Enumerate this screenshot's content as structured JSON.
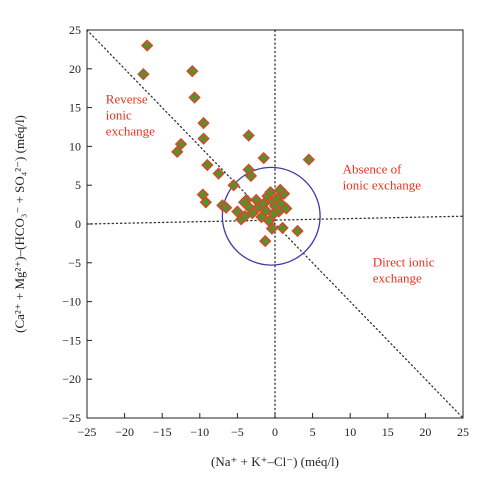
{
  "colors": {
    "axis": "#222222",
    "guide_line": "#333333",
    "circle": "#3a3aa8",
    "marker_fill": "#5a8f2a",
    "marker_stroke": "#d9482c",
    "region_text": "#e8321e"
  },
  "chart_data": {
    "type": "scatter",
    "xlabel": "(Na⁺ + K⁺–Cl⁻) (méq/l)",
    "ylabel": "(Ca²⁺ + Mg²⁺)–(HCO₃⁻ + SO₄²⁻) (méq/l)",
    "xlim": [
      -25,
      25
    ],
    "ylim": [
      -25,
      25
    ],
    "x_ticks": [
      -25,
      -20,
      -15,
      -10,
      -5,
      0,
      5,
      10,
      15,
      20,
      25
    ],
    "y_ticks": [
      -25,
      -20,
      -15,
      -10,
      -5,
      0,
      5,
      10,
      15,
      20,
      25
    ],
    "x_tick_labels": [
      "−25",
      "−20",
      "−15",
      "−10",
      "−5",
      "0",
      "5",
      "10",
      "15",
      "20",
      "25"
    ],
    "y_tick_labels": [
      "−25",
      "−20",
      "−15",
      "−10",
      "−5",
      "0",
      "5",
      "10",
      "15",
      "20",
      "25"
    ],
    "grid": false,
    "marker": "diamond",
    "reference_lines": [
      {
        "style": "dotted",
        "from": [
          -25,
          25
        ],
        "to": [
          25,
          -25
        ]
      },
      {
        "style": "dotted",
        "from": [
          -25,
          0
        ],
        "to": [
          25,
          1
        ]
      },
      {
        "style": "dotted",
        "from": [
          0,
          -25
        ],
        "to": [
          0,
          25
        ]
      }
    ],
    "circle": {
      "center": [
        -0.5,
        1
      ],
      "radius": 6.5
    },
    "region_labels": [
      {
        "lines": [
          "Reverse",
          "ionic",
          "exchange"
        ],
        "at": [
          -22.5,
          15.5
        ]
      },
      {
        "lines": [
          "Absence of",
          "ionic exchange"
        ],
        "at": [
          9,
          6.5
        ]
      },
      {
        "lines": [
          "Direct ionic",
          "exchange"
        ],
        "at": [
          13,
          -5.5
        ]
      }
    ],
    "points": [
      {
        "x": -17,
        "y": 23
      },
      {
        "x": -17.5,
        "y": 19.3
      },
      {
        "x": -11,
        "y": 19.7
      },
      {
        "x": -10.7,
        "y": 16.3
      },
      {
        "x": -9.5,
        "y": 13
      },
      {
        "x": -12.5,
        "y": 10.3
      },
      {
        "x": -13,
        "y": 9.3
      },
      {
        "x": -9.5,
        "y": 11
      },
      {
        "x": -3.5,
        "y": 11.4
      },
      {
        "x": -1.5,
        "y": 8.5
      },
      {
        "x": 4.5,
        "y": 8.3
      },
      {
        "x": -9,
        "y": 7.6
      },
      {
        "x": -7.5,
        "y": 6.5
      },
      {
        "x": -3.5,
        "y": 7
      },
      {
        "x": -3.2,
        "y": 6.2
      },
      {
        "x": -5.5,
        "y": 5
      },
      {
        "x": -9.6,
        "y": 3.8
      },
      {
        "x": -9.2,
        "y": 2.8
      },
      {
        "x": -7,
        "y": 2.4
      },
      {
        "x": -6.5,
        "y": 2.1
      },
      {
        "x": -5,
        "y": 1.6
      },
      {
        "x": -4.5,
        "y": 0.6
      },
      {
        "x": -4,
        "y": 1
      },
      {
        "x": -3.5,
        "y": 2.2
      },
      {
        "x": -3,
        "y": 1.4
      },
      {
        "x": -2.5,
        "y": 3.1
      },
      {
        "x": -2.2,
        "y": 2.2
      },
      {
        "x": -1.8,
        "y": 0.9
      },
      {
        "x": -1.5,
        "y": 2.6
      },
      {
        "x": -1,
        "y": 3.6
      },
      {
        "x": -0.6,
        "y": 4.1
      },
      {
        "x": -0.3,
        "y": 2.9
      },
      {
        "x": 0,
        "y": 2.3
      },
      {
        "x": 0.3,
        "y": 3.3
      },
      {
        "x": 0.5,
        "y": 1.6
      },
      {
        "x": 0.8,
        "y": 2.6
      },
      {
        "x": 1.2,
        "y": 3.9
      },
      {
        "x": 1.5,
        "y": 2
      },
      {
        "x": -0.2,
        "y": 1.3
      },
      {
        "x": -1.2,
        "y": 1.7
      },
      {
        "x": -3.8,
        "y": 3.1
      },
      {
        "x": 0.7,
        "y": 4.4
      },
      {
        "x": -4.1,
        "y": 2.8
      },
      {
        "x": 1,
        "y": -0.5
      },
      {
        "x": 3,
        "y": -0.9
      },
      {
        "x": -0.4,
        "y": -0.6
      },
      {
        "x": -1.3,
        "y": -2.2
      },
      {
        "x": -0.8,
        "y": 0.4
      }
    ]
  }
}
